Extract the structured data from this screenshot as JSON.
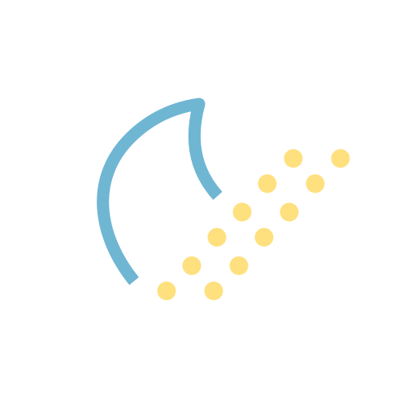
{
  "icon": {
    "name": "moon-dots-icon",
    "colors": {
      "background": "#ffffff",
      "moon_stroke": "#6fb6d3",
      "dot_fill": "#ffe07f"
    },
    "dot_count": 12
  }
}
